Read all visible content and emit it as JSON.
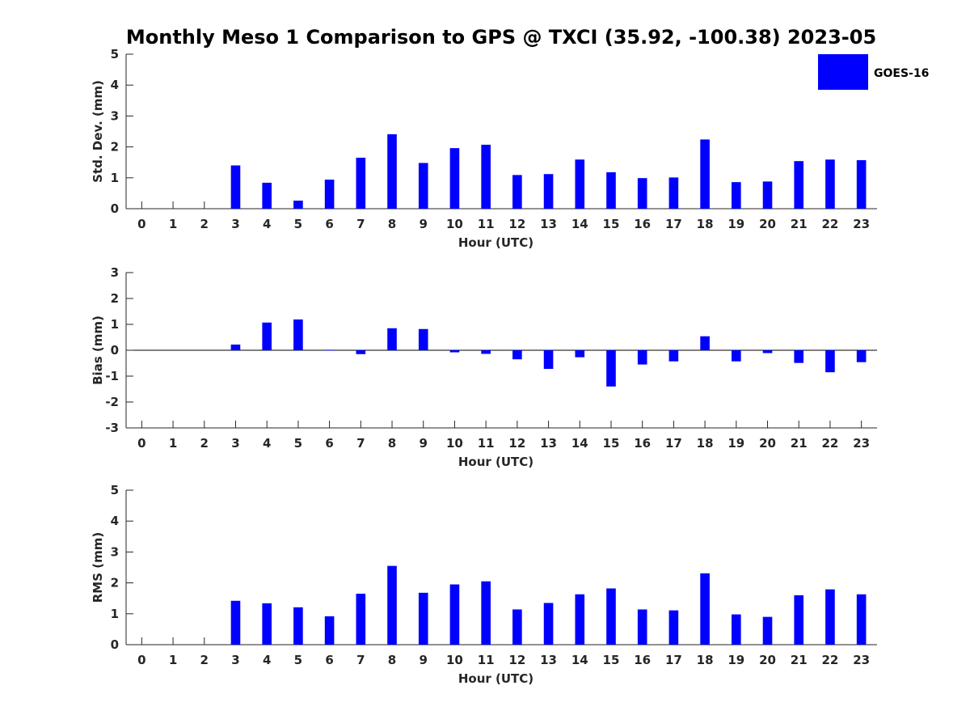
{
  "chart_data": [
    {
      "type": "bar",
      "title": "Monthly Meso 1 Comparison to GPS @ TXCI (35.92, -100.38) 2023-05",
      "xlabel": "Hour (UTC)",
      "ylabel": "Std. Dev. (mm)",
      "ylim": [
        0,
        5
      ],
      "yticks": [
        0,
        1,
        2,
        3,
        4,
        5
      ],
      "categories": [
        "0",
        "1",
        "2",
        "3",
        "4",
        "5",
        "6",
        "7",
        "8",
        "9",
        "10",
        "11",
        "12",
        "13",
        "14",
        "15",
        "16",
        "17",
        "18",
        "19",
        "20",
        "21",
        "22",
        "23"
      ],
      "series": [
        {
          "name": "GOES-16",
          "color": "#0000ff",
          "values": [
            0,
            0,
            0,
            1.4,
            0.84,
            0.26,
            0.94,
            1.65,
            2.41,
            1.48,
            1.96,
            2.07,
            1.09,
            1.12,
            1.59,
            1.18,
            0.99,
            1.01,
            2.24,
            0.86,
            0.88,
            1.54,
            1.59,
            1.57
          ]
        }
      ],
      "legend": {
        "entries": [
          "GOES-16"
        ],
        "position": "top-right"
      }
    },
    {
      "type": "bar",
      "xlabel": "Hour (UTC)",
      "ylabel": "Bias (mm)",
      "ylim": [
        -3,
        3
      ],
      "yticks": [
        -3,
        -2,
        -1,
        0,
        1,
        2,
        3
      ],
      "categories": [
        "0",
        "1",
        "2",
        "3",
        "4",
        "5",
        "6",
        "7",
        "8",
        "9",
        "10",
        "11",
        "12",
        "13",
        "14",
        "15",
        "16",
        "17",
        "18",
        "19",
        "20",
        "21",
        "22",
        "23"
      ],
      "series": [
        {
          "name": "GOES-16",
          "color": "#0000ff",
          "values": [
            0,
            0,
            0,
            0.22,
            1.07,
            1.19,
            0.02,
            -0.15,
            0.85,
            0.82,
            -0.08,
            -0.14,
            -0.35,
            -0.72,
            -0.27,
            -1.4,
            -0.55,
            -0.43,
            0.54,
            -0.43,
            -0.11,
            -0.49,
            -0.85,
            -0.46
          ]
        }
      ]
    },
    {
      "type": "bar",
      "xlabel": "Hour (UTC)",
      "ylabel": "RMS (mm)",
      "ylim": [
        0,
        5
      ],
      "yticks": [
        0,
        1,
        2,
        3,
        4,
        5
      ],
      "categories": [
        "0",
        "1",
        "2",
        "3",
        "4",
        "5",
        "6",
        "7",
        "8",
        "9",
        "10",
        "11",
        "12",
        "13",
        "14",
        "15",
        "16",
        "17",
        "18",
        "19",
        "20",
        "21",
        "22",
        "23"
      ],
      "series": [
        {
          "name": "GOES-16",
          "color": "#0000ff",
          "values": [
            0,
            0,
            0,
            1.42,
            1.34,
            1.21,
            0.92,
            1.65,
            2.55,
            1.68,
            1.95,
            2.05,
            1.14,
            1.35,
            1.63,
            1.82,
            1.14,
            1.11,
            2.31,
            0.98,
            0.9,
            1.6,
            1.79,
            1.63
          ]
        }
      ]
    }
  ]
}
